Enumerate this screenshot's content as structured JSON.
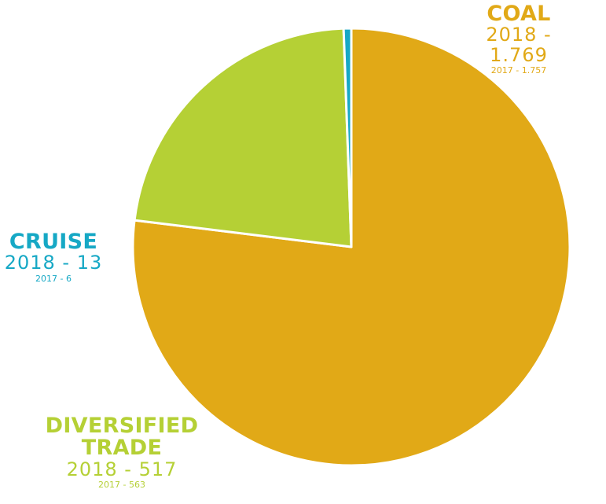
{
  "chart_data": {
    "type": "pie",
    "slices": [
      {
        "name": "COAL",
        "value_2018": 1769,
        "value_2017": 1757,
        "color": "#E1A917",
        "text_2018": "2018 -  1.769",
        "text_2017": "2017 - 1.757"
      },
      {
        "name": "DIVERSIFIED TRADE",
        "value_2018": 517,
        "value_2017": 563,
        "color": "#B5D035",
        "text_2018": "2018 -  517",
        "text_2017": "2017 - 563"
      },
      {
        "name": "CRUISE",
        "value_2018": 13,
        "value_2017": 6,
        "color": "#16A8C5",
        "text_2018": "2018 -  13",
        "text_2017": "2017 - 6"
      }
    ]
  },
  "labels": {
    "coal": {
      "name": "COAL",
      "cur": "2018 -  1.769",
      "prev": "2017 - 1.757",
      "color": "#E1A917"
    },
    "cruise": {
      "name": "CRUISE",
      "cur": "2018 -  13",
      "prev": "2017 - 6",
      "color": "#16A8C5"
    },
    "trade": {
      "name_line1": "DIVERSIFIED",
      "name_line2": "TRADE",
      "cur": "2018 -  517",
      "prev": "2017 - 563",
      "color": "#B5D035"
    }
  }
}
